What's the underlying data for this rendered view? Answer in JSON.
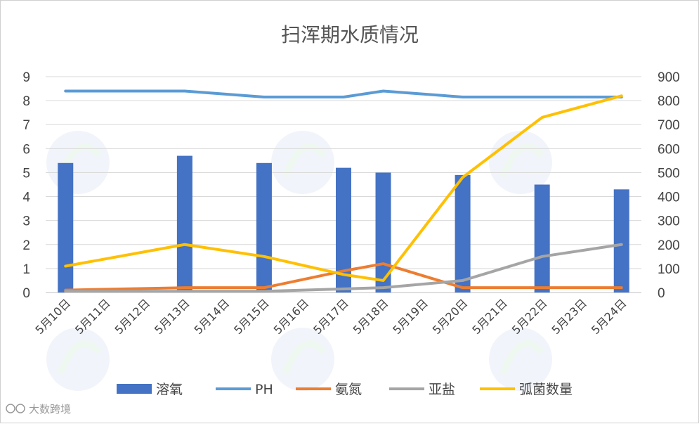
{
  "watermark": "大数跨境",
  "colors": {
    "dissolved_oxygen": "#4472C4",
    "ph": "#5B9BD5",
    "ammonia": "#ED7D31",
    "nitrite": "#A5A5A5",
    "vibrio": "#FFC000",
    "grid": "#d9d9d9"
  },
  "chart_data": {
    "type": "bar",
    "title": "扫浑期水质情况",
    "categories": [
      "5月10日",
      "5月11日",
      "5月12日",
      "5月13日",
      "5月14日",
      "5月15日",
      "5月16日",
      "5月17日",
      "5月18日",
      "5月19日",
      "5月20日",
      "5月21日",
      "5月22日",
      "5月23日",
      "5月24日"
    ],
    "y_left": {
      "range": [
        0,
        9
      ],
      "ticks": [
        "0",
        "1",
        "2",
        "3",
        "4",
        "5",
        "6",
        "7",
        "8",
        "9"
      ]
    },
    "y_right": {
      "range": [
        0,
        900
      ],
      "ticks": [
        "0",
        "100",
        "200",
        "300",
        "400",
        "500",
        "600",
        "700",
        "800",
        "900"
      ]
    },
    "grid": true,
    "legend_position": "bottom",
    "series": [
      {
        "name": "溶氧",
        "type": "bar",
        "axis": "left",
        "values": [
          5.4,
          null,
          null,
          5.7,
          null,
          5.4,
          null,
          5.2,
          5.0,
          null,
          4.9,
          null,
          4.5,
          null,
          4.3
        ]
      },
      {
        "name": "PH",
        "type": "line",
        "axis": "left",
        "values": [
          8.4,
          null,
          null,
          8.4,
          null,
          8.15,
          null,
          8.15,
          8.4,
          null,
          8.15,
          null,
          8.15,
          null,
          8.15
        ]
      },
      {
        "name": "氨氮",
        "type": "line",
        "axis": "left",
        "values": [
          0.1,
          null,
          null,
          0.2,
          null,
          0.2,
          null,
          0.9,
          1.2,
          null,
          0.2,
          null,
          0.2,
          null,
          0.2
        ]
      },
      {
        "name": "亚盐",
        "type": "line",
        "axis": "left",
        "values": [
          0.05,
          null,
          null,
          0.05,
          null,
          0.05,
          null,
          0.15,
          0.2,
          null,
          0.5,
          null,
          1.5,
          null,
          2.0
        ]
      },
      {
        "name": "弧菌数量",
        "type": "line",
        "axis": "right",
        "values": [
          110,
          null,
          null,
          200,
          null,
          150,
          null,
          75,
          50,
          null,
          480,
          null,
          730,
          null,
          820
        ]
      }
    ]
  }
}
